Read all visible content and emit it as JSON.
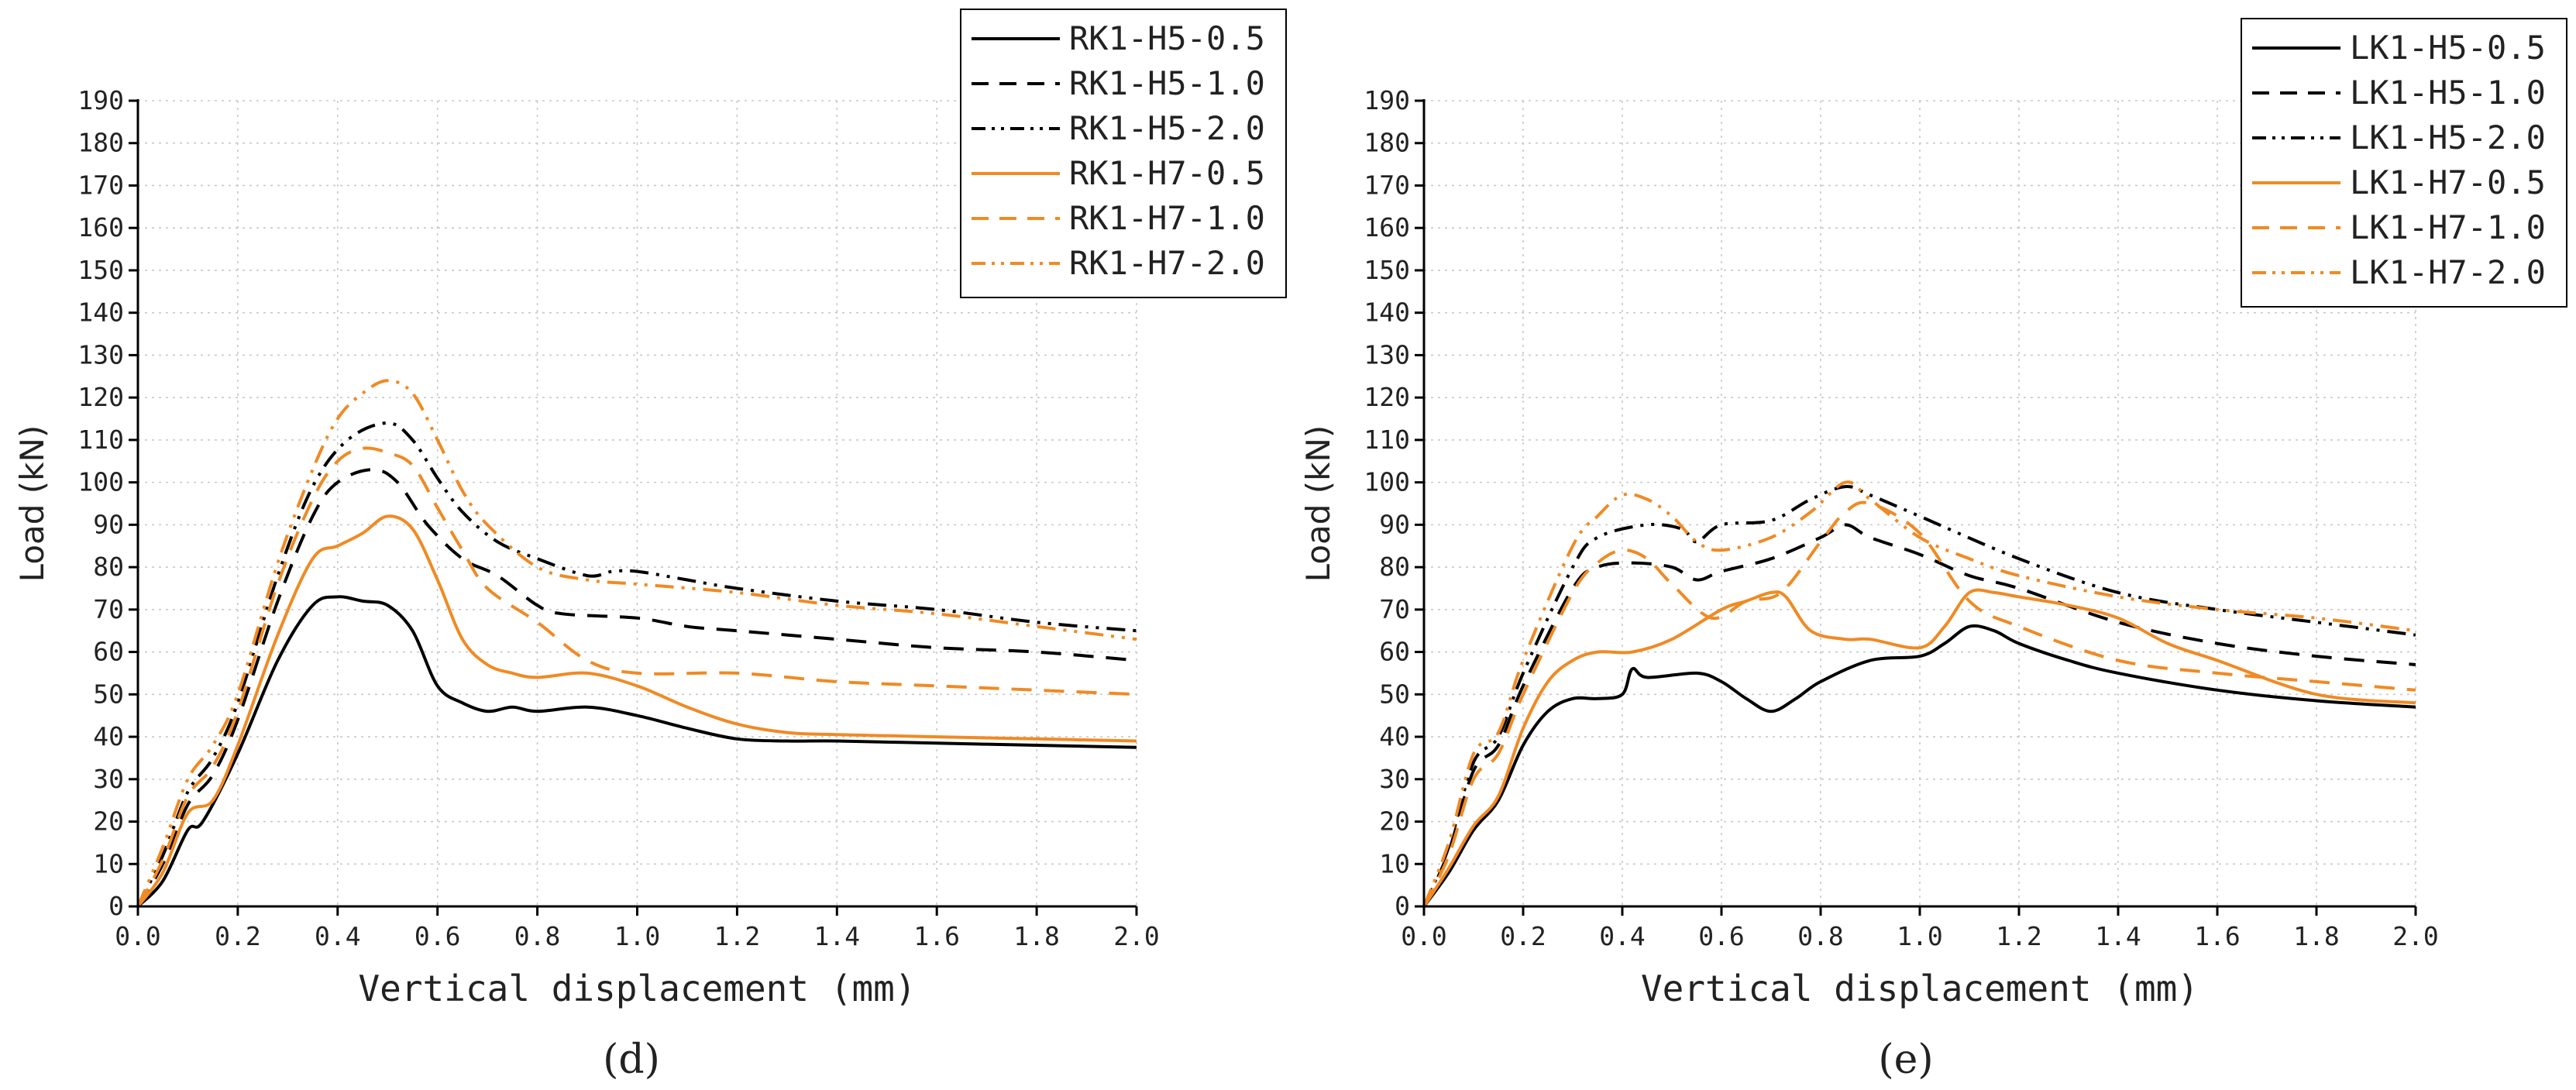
{
  "colors": {
    "black": "#000000",
    "orange": "#f08a24",
    "grid": "#c8c8c8"
  },
  "chart_data": [
    {
      "type": "line",
      "caption": "(d)",
      "xlabel": "Vertical displacement (mm)",
      "ylabel": "Load (kN)",
      "xlim": [
        0,
        2.0
      ],
      "ylim": [
        0,
        190
      ],
      "xticks": [
        "0.0",
        "0.2",
        "0.4",
        "0.6",
        "0.8",
        "1.0",
        "1.2",
        "1.4",
        "1.6",
        "1.8",
        "2.0"
      ],
      "yticks": [
        "0",
        "10",
        "20",
        "30",
        "40",
        "50",
        "60",
        "70",
        "80",
        "90",
        "100",
        "110",
        "120",
        "130",
        "140",
        "150",
        "160",
        "170",
        "180",
        "190"
      ],
      "grid": true,
      "legend_position": "top-right",
      "series": [
        {
          "name": "RK1-H5-0.5",
          "color": "black",
          "dash": "solid",
          "x": [
            0,
            0.05,
            0.1,
            0.13,
            0.2,
            0.28,
            0.35,
            0.4,
            0.45,
            0.5,
            0.55,
            0.6,
            0.65,
            0.7,
            0.75,
            0.8,
            0.9,
            1.0,
            1.1,
            1.2,
            1.3,
            1.4,
            1.6,
            1.8,
            2.0
          ],
          "y": [
            0,
            6,
            18,
            20,
            36,
            58,
            71,
            73,
            72,
            71,
            65,
            52,
            48,
            46,
            47,
            46,
            47,
            45,
            42,
            39.5,
            39,
            39,
            38.5,
            38,
            37.5
          ]
        },
        {
          "name": "RK1-H5-1.0",
          "color": "black",
          "dash": "dash",
          "x": [
            0,
            0.05,
            0.1,
            0.15,
            0.2,
            0.28,
            0.35,
            0.4,
            0.47,
            0.52,
            0.58,
            0.65,
            0.72,
            0.8,
            0.85,
            1.0,
            1.1,
            1.2,
            1.4,
            1.6,
            1.8,
            2.0
          ],
          "y": [
            0,
            10,
            24,
            31,
            44,
            72,
            92,
            100,
            103,
            100,
            90,
            82,
            78,
            71,
            69,
            68,
            66,
            65,
            63,
            61,
            60,
            58
          ]
        },
        {
          "name": "RK1-H5-2.0",
          "color": "black",
          "dash": "dashdotdot",
          "x": [
            0,
            0.05,
            0.1,
            0.15,
            0.2,
            0.28,
            0.35,
            0.42,
            0.5,
            0.55,
            0.6,
            0.65,
            0.72,
            0.8,
            0.9,
            0.95,
            1.0,
            1.1,
            1.2,
            1.4,
            1.6,
            1.8,
            2.0
          ],
          "y": [
            0,
            12,
            27,
            35,
            48,
            78,
            99,
            110,
            114,
            110,
            101,
            93,
            86,
            82,
            78,
            79,
            79,
            77,
            75,
            72,
            70,
            67,
            65
          ]
        },
        {
          "name": "RK1-H7-0.5",
          "color": "orange",
          "dash": "solid",
          "x": [
            0,
            0.05,
            0.1,
            0.15,
            0.2,
            0.28,
            0.35,
            0.4,
            0.45,
            0.5,
            0.55,
            0.6,
            0.65,
            0.7,
            0.75,
            0.8,
            0.9,
            1.0,
            1.1,
            1.2,
            1.3,
            1.4,
            1.6,
            1.8,
            2.0
          ],
          "y": [
            0,
            8,
            22,
            25,
            38,
            64,
            82,
            85,
            88,
            92,
            89,
            77,
            63,
            57,
            55,
            54,
            55,
            52,
            47,
            43,
            41,
            40.5,
            40,
            39.5,
            39
          ]
        },
        {
          "name": "RK1-H7-1.0",
          "color": "orange",
          "dash": "dash",
          "x": [
            0,
            0.05,
            0.1,
            0.15,
            0.2,
            0.28,
            0.35,
            0.4,
            0.45,
            0.5,
            0.55,
            0.6,
            0.65,
            0.7,
            0.8,
            0.9,
            1.0,
            1.2,
            1.4,
            1.6,
            1.8,
            2.0
          ],
          "y": [
            0,
            11,
            26,
            33,
            46,
            76,
            96,
            105,
            108,
            107,
            104,
            94,
            84,
            75,
            67,
            58,
            55,
            55,
            53,
            52,
            51,
            50
          ]
        },
        {
          "name": "RK1-H7-2.0",
          "color": "orange",
          "dash": "dashdotdot",
          "x": [
            0,
            0.05,
            0.1,
            0.15,
            0.2,
            0.28,
            0.35,
            0.4,
            0.45,
            0.5,
            0.55,
            0.6,
            0.65,
            0.7,
            0.8,
            0.9,
            1.0,
            1.2,
            1.4,
            1.6,
            1.8,
            2.0
          ],
          "y": [
            0,
            14,
            30,
            38,
            50,
            81,
            103,
            115,
            121,
            124,
            121,
            110,
            98,
            90,
            80,
            77,
            76,
            74,
            71,
            69,
            66,
            63
          ]
        }
      ]
    },
    {
      "type": "line",
      "caption": "(e)",
      "xlabel": "Vertical displacement (mm)",
      "ylabel": "Load (kN)",
      "xlim": [
        0,
        2.0
      ],
      "ylim": [
        0,
        190
      ],
      "xticks": [
        "0.0",
        "0.2",
        "0.4",
        "0.6",
        "0.8",
        "1.0",
        "1.2",
        "1.4",
        "1.6",
        "1.8",
        "2.0"
      ],
      "yticks": [
        "0",
        "10",
        "20",
        "30",
        "40",
        "50",
        "60",
        "70",
        "80",
        "90",
        "100",
        "110",
        "120",
        "130",
        "140",
        "150",
        "160",
        "170",
        "180",
        "190"
      ],
      "grid": true,
      "legend_position": "top-right",
      "series": [
        {
          "name": "LK1-H5-0.5",
          "color": "black",
          "dash": "solid",
          "x": [
            0,
            0.05,
            0.1,
            0.15,
            0.2,
            0.25,
            0.3,
            0.35,
            0.4,
            0.42,
            0.45,
            0.55,
            0.6,
            0.65,
            0.7,
            0.75,
            0.8,
            0.9,
            1.0,
            1.05,
            1.1,
            1.15,
            1.2,
            1.3,
            1.4,
            1.6,
            1.8,
            2.0
          ],
          "y": [
            0,
            8,
            18,
            25,
            38,
            46,
            49,
            49,
            50,
            56,
            54,
            55,
            53,
            49,
            46,
            49,
            53,
            58,
            59,
            62,
            66,
            65,
            62,
            58,
            55,
            51,
            48.5,
            47
          ]
        },
        {
          "name": "LK1-H5-1.0",
          "color": "black",
          "dash": "dash",
          "x": [
            0,
            0.05,
            0.1,
            0.15,
            0.2,
            0.3,
            0.35,
            0.42,
            0.5,
            0.55,
            0.6,
            0.7,
            0.8,
            0.85,
            0.9,
            1.0,
            1.1,
            1.2,
            1.4,
            1.6,
            1.8,
            2.0
          ],
          "y": [
            0,
            13,
            32,
            38,
            52,
            75,
            80,
            81,
            80,
            77,
            79,
            82,
            87,
            90,
            87,
            83,
            78,
            75,
            67,
            62,
            59,
            57
          ]
        },
        {
          "name": "LK1-H5-2.0",
          "color": "black",
          "dash": "dashdotdot",
          "x": [
            0,
            0.05,
            0.1,
            0.15,
            0.2,
            0.3,
            0.35,
            0.45,
            0.52,
            0.55,
            0.6,
            0.7,
            0.78,
            0.85,
            0.9,
            1.0,
            1.2,
            1.4,
            1.6,
            1.8,
            2.0
          ],
          "y": [
            0,
            14,
            34,
            40,
            55,
            80,
            87,
            90,
            89,
            86,
            90,
            91,
            96,
            99,
            97,
            92,
            82,
            74,
            70,
            67,
            64
          ]
        },
        {
          "name": "LK1-H7-0.5",
          "color": "orange",
          "dash": "solid",
          "x": [
            0,
            0.05,
            0.1,
            0.15,
            0.2,
            0.25,
            0.3,
            0.35,
            0.42,
            0.5,
            0.6,
            0.65,
            0.7,
            0.73,
            0.78,
            0.85,
            0.9,
            1.0,
            1.05,
            1.1,
            1.15,
            1.2,
            1.3,
            1.4,
            1.5,
            1.6,
            1.8,
            2.0
          ],
          "y": [
            0,
            9,
            19,
            26,
            42,
            53,
            58,
            60,
            60,
            63,
            70,
            72,
            74,
            73,
            65,
            63,
            63,
            61,
            66,
            74,
            74,
            73,
            71,
            68,
            62,
            58,
            50,
            48
          ]
        },
        {
          "name": "LK1-H7-1.0",
          "color": "orange",
          "dash": "dash",
          "x": [
            0,
            0.05,
            0.1,
            0.15,
            0.2,
            0.3,
            0.35,
            0.4,
            0.45,
            0.5,
            0.58,
            0.65,
            0.72,
            0.8,
            0.85,
            0.9,
            1.0,
            1.1,
            1.2,
            1.4,
            1.6,
            1.8,
            2.0
          ],
          "y": [
            0,
            12,
            30,
            36,
            50,
            74,
            81,
            84,
            82,
            76,
            68,
            72,
            74,
            86,
            93,
            95,
            88,
            72,
            66,
            58,
            55,
            53,
            51
          ]
        },
        {
          "name": "LK1-H7-2.0",
          "color": "orange",
          "dash": "dashdotdot",
          "x": [
            0,
            0.05,
            0.1,
            0.15,
            0.2,
            0.3,
            0.35,
            0.4,
            0.45,
            0.5,
            0.55,
            0.6,
            0.7,
            0.78,
            0.85,
            0.9,
            1.0,
            1.1,
            1.2,
            1.4,
            1.6,
            1.8,
            2.0
          ],
          "y": [
            0,
            15,
            36,
            41,
            58,
            85,
            92,
            97,
            96,
            92,
            86,
            84,
            87,
            93,
            100,
            96,
            87,
            82,
            78,
            73,
            70,
            68,
            65
          ]
        }
      ]
    }
  ]
}
